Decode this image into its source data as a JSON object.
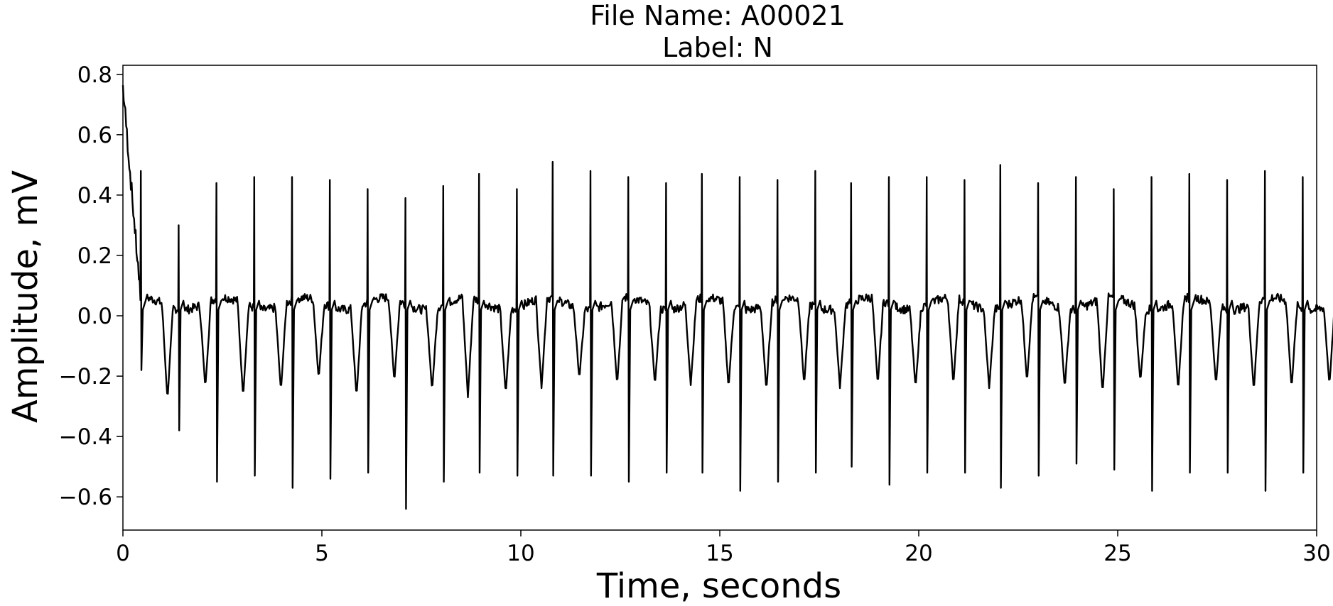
{
  "chart_data": {
    "type": "line",
    "title_line1": "File Name: A00021",
    "title_line2": "Label: N",
    "xlabel": "Time, seconds",
    "ylabel": "Amplitude, mV",
    "xlim": [
      0,
      30
    ],
    "ylim": [
      -0.71,
      0.83
    ],
    "x_ticks": [
      "0",
      "5",
      "10",
      "15",
      "20",
      "25",
      "30"
    ],
    "y_ticks": [
      "0.8",
      "0.6",
      "0.4",
      "0.2",
      "0.0",
      "−0.2",
      "−0.4",
      "−0.6"
    ],
    "x_tick_values": [
      0,
      5,
      10,
      15,
      20,
      25,
      30
    ],
    "y_tick_values": [
      0.8,
      0.6,
      0.4,
      0.2,
      0.0,
      -0.2,
      -0.4,
      -0.6
    ],
    "grid": false,
    "line_color": "#000000",
    "series": [
      {
        "beats": [
          [
            0.45,
            0.48,
            -0.18,
            -0.28
          ],
          [
            1.4,
            0.3,
            -0.38,
            -0.24
          ],
          [
            2.35,
            0.44,
            -0.55,
            -0.27
          ],
          [
            3.3,
            0.46,
            -0.53,
            -0.25
          ],
          [
            4.25,
            0.46,
            -0.57,
            -0.21
          ],
          [
            5.2,
            0.45,
            -0.54,
            -0.27
          ],
          [
            6.15,
            0.42,
            -0.52,
            -0.22
          ],
          [
            7.1,
            0.39,
            -0.64,
            -0.25
          ],
          [
            8.05,
            0.43,
            -0.55,
            -0.27
          ],
          [
            8.95,
            0.47,
            -0.52,
            -0.26
          ],
          [
            9.9,
            0.42,
            -0.53,
            -0.24
          ],
          [
            10.8,
            0.51,
            -0.53,
            -0.21
          ],
          [
            11.75,
            0.48,
            -0.53,
            -0.23
          ],
          [
            12.7,
            0.46,
            -0.55,
            -0.23
          ],
          [
            13.65,
            0.44,
            -0.52,
            -0.23
          ],
          [
            14.55,
            0.47,
            -0.52,
            -0.24
          ],
          [
            15.5,
            0.46,
            -0.58,
            -0.25
          ],
          [
            16.45,
            0.45,
            -0.55,
            -0.23
          ],
          [
            17.4,
            0.48,
            -0.52,
            -0.24
          ],
          [
            18.3,
            0.44,
            -0.5,
            -0.23
          ],
          [
            19.25,
            0.46,
            -0.56,
            -0.24
          ],
          [
            20.2,
            0.46,
            -0.52,
            -0.23
          ],
          [
            21.15,
            0.45,
            -0.52,
            -0.24
          ],
          [
            22.05,
            0.5,
            -0.57,
            -0.22
          ],
          [
            23.0,
            0.44,
            -0.53,
            -0.24
          ],
          [
            23.95,
            0.46,
            -0.49,
            -0.26
          ],
          [
            24.9,
            0.42,
            -0.51,
            -0.22
          ],
          [
            25.85,
            0.46,
            -0.58,
            -0.25
          ],
          [
            26.8,
            0.47,
            -0.52,
            -0.23
          ],
          [
            27.75,
            0.45,
            -0.52,
            -0.25
          ],
          [
            28.7,
            0.48,
            -0.58,
            -0.24
          ],
          [
            29.65,
            0.46,
            -0.52,
            -0.23
          ]
        ]
      }
    ]
  }
}
